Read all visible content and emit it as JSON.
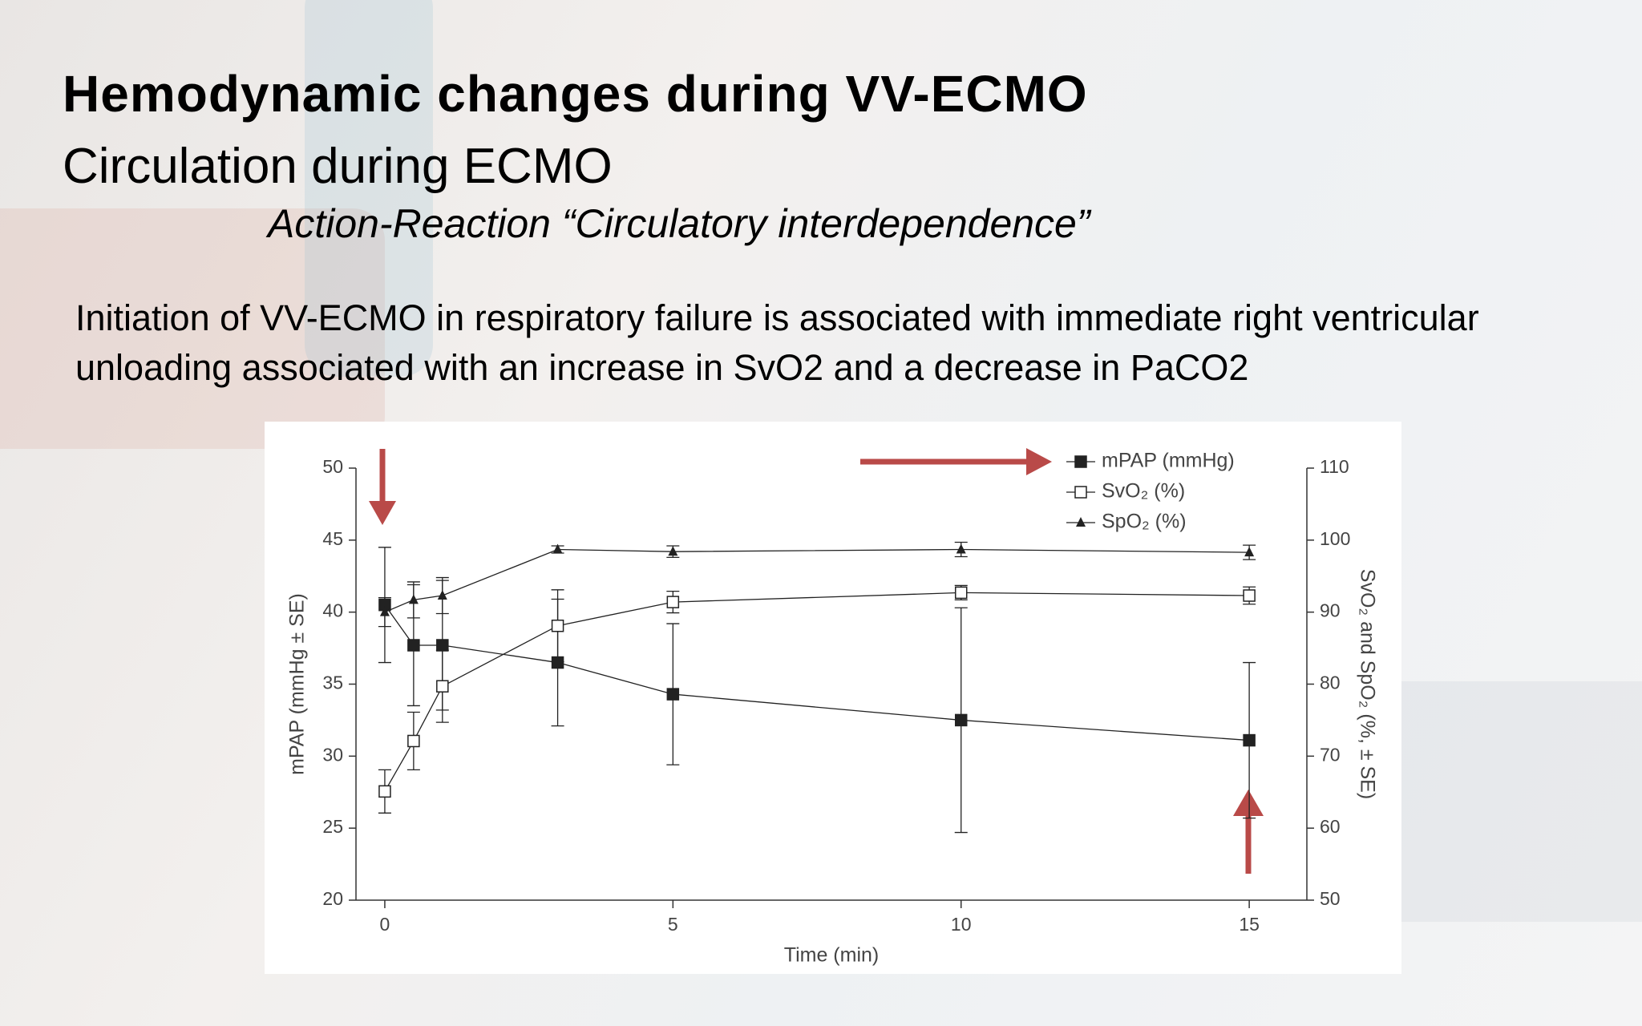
{
  "title": "Hemodynamic changes during VV-ECMO",
  "subtitle": "Circulation during ECMO",
  "tagline": "Action-Reaction “Circulatory interdependence”",
  "body": "Initiation of VV-ECMO in respiratory failure is associated with immediate right ventricular unloading associated with an increase in SvO2 and a decrease in PaCO2",
  "chart_data": {
    "type": "line",
    "x_label": "Time (min)",
    "y_label": "mPAP (mmHg ± SE)",
    "y2_label": "SvO₂ and SpO₂ (%, ± SE)",
    "x": [
      0,
      0.5,
      1,
      3,
      5,
      10,
      15
    ],
    "xlim": [
      -0.5,
      16
    ],
    "xticks": [
      0,
      5,
      10,
      15
    ],
    "ylim": [
      20,
      50
    ],
    "yticks": [
      20,
      25,
      30,
      35,
      40,
      45,
      50
    ],
    "y2lim": [
      50,
      110
    ],
    "y2ticks": [
      50,
      60,
      70,
      80,
      90,
      100,
      110
    ],
    "series": [
      {
        "name": "mPAP (mmHg)",
        "color": "#222222",
        "marker": "square-filled",
        "axis": "y",
        "values": [
          40.5,
          37.7,
          37.7,
          36.5,
          34.3,
          32.5,
          31.1
        ],
        "errors": [
          4,
          4.2,
          4.5,
          4.4,
          4.9,
          7.8,
          5.4
        ]
      },
      {
        "name": "SvO₂ (%)",
        "color": "#222222",
        "marker": "square-open",
        "axis": "y2",
        "values": [
          65.1,
          72.1,
          79.7,
          88.1,
          91.4,
          92.7,
          92.3
        ],
        "errors": [
          3,
          4,
          5,
          5,
          1.5,
          1,
          1.2
        ]
      },
      {
        "name": "SpO₂ (%)",
        "color": "#222222",
        "marker": "triangle-filled",
        "axis": "y2",
        "values": [
          90,
          91.7,
          92.3,
          98.7,
          98.4,
          98.7,
          98.3
        ],
        "errors": [
          2,
          2.5,
          2.5,
          0.5,
          0.8,
          1,
          1
        ]
      }
    ]
  }
}
